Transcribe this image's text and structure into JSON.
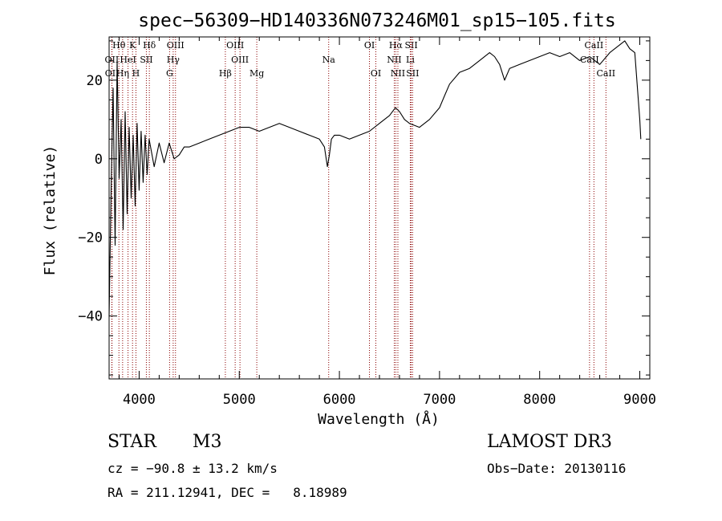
{
  "chart_data": {
    "type": "line",
    "title": "spec−56309−HD140336N073246M01_sp15−105.fits",
    "xlabel": "Wavelength (Å)",
    "ylabel": "Flux (relative)",
    "xlim": [
      3700,
      9100
    ],
    "ylim": [
      -56,
      31
    ],
    "xticks": [
      4000,
      5000,
      6000,
      7000,
      8000,
      9000
    ],
    "xtick_labels": [
      "4000",
      "5000",
      "6000",
      "7000",
      "8000",
      "9000"
    ],
    "yticks": [
      -40,
      -20,
      0,
      20
    ],
    "ytick_labels": [
      "−40",
      "−20",
      "0",
      "20"
    ],
    "grid": false,
    "series": [
      {
        "name": "spectrum",
        "color": "#000000",
        "x": [
          3700,
          3720,
          3740,
          3760,
          3780,
          3800,
          3820,
          3840,
          3860,
          3880,
          3900,
          3920,
          3940,
          3960,
          3980,
          4000,
          4020,
          4040,
          4060,
          4080,
          4100,
          4150,
          4200,
          4250,
          4300,
          4350,
          4400,
          4450,
          4500,
          4600,
          4700,
          4800,
          4900,
          5000,
          5100,
          5200,
          5300,
          5400,
          5500,
          5600,
          5700,
          5800,
          5850,
          5880,
          5900,
          5920,
          5950,
          6000,
          6100,
          6200,
          6300,
          6400,
          6500,
          6560,
          6600,
          6650,
          6700,
          6800,
          6900,
          7000,
          7050,
          7100,
          7200,
          7300,
          7400,
          7500,
          7550,
          7600,
          7650,
          7700,
          7800,
          7900,
          8000,
          8100,
          8200,
          8300,
          8400,
          8500,
          8600,
          8700,
          8800,
          8850,
          8900,
          8950,
          9000,
          9010
        ],
        "y": [
          -40,
          -8,
          18,
          -22,
          25,
          -5,
          10,
          -18,
          12,
          -14,
          8,
          -10,
          6,
          -12,
          9,
          -8,
          7,
          -6,
          6,
          -4,
          5,
          -2,
          4,
          -1,
          4,
          0,
          1,
          3,
          3,
          4,
          5,
          6,
          7,
          8,
          8,
          7,
          8,
          9,
          8,
          7,
          6,
          5,
          3,
          -2,
          1,
          5,
          6,
          6,
          5,
          6,
          7,
          9,
          11,
          13,
          12,
          10,
          9,
          8,
          10,
          13,
          16,
          19,
          22,
          23,
          25,
          27,
          26,
          24,
          20,
          23,
          24,
          25,
          26,
          27,
          26,
          27,
          25,
          26,
          24,
          27,
          29,
          30,
          28,
          27,
          10,
          5
        ]
      }
    ],
    "lines": [
      {
        "name": "Hθ",
        "x": 3798,
        "row": 0
      },
      {
        "name": "K",
        "x": 3934,
        "row": 0
      },
      {
        "name": "Hδ",
        "x": 4102,
        "row": 0
      },
      {
        "name": "OIII",
        "x": 4363,
        "row": 0
      },
      {
        "name": "OIII",
        "x": 4959,
        "row": 0
      },
      {
        "name": "OI",
        "x": 6300,
        "row": 0
      },
      {
        "name": "Hα",
        "x": 6563,
        "row": 0
      },
      {
        "name": "SII",
        "x": 6717,
        "row": 0
      },
      {
        "name": "CaII",
        "x": 8542,
        "row": 0
      },
      {
        "name": "OII",
        "x": 3727,
        "row": 1
      },
      {
        "name": "HeI",
        "x": 3889,
        "row": 1
      },
      {
        "name": "SII",
        "x": 4072,
        "row": 1
      },
      {
        "name": "Hγ",
        "x": 4340,
        "row": 1
      },
      {
        "name": "OIII",
        "x": 5007,
        "row": 1
      },
      {
        "name": "Na",
        "x": 5893,
        "row": 1
      },
      {
        "name": "NII",
        "x": 6548,
        "row": 1
      },
      {
        "name": "Li",
        "x": 6708,
        "row": 1
      },
      {
        "name": "CaII",
        "x": 8498,
        "row": 1
      },
      {
        "name": "OII",
        "x": 3729,
        "row": 2
      },
      {
        "name": "Hη",
        "x": 3835,
        "row": 2
      },
      {
        "name": "H",
        "x": 3968,
        "row": 2
      },
      {
        "name": "G",
        "x": 4304,
        "row": 2
      },
      {
        "name": "Hβ",
        "x": 4861,
        "row": 2
      },
      {
        "name": "Mg",
        "x": 5175,
        "row": 2
      },
      {
        "name": "OI",
        "x": 6364,
        "row": 2
      },
      {
        "name": "NII",
        "x": 6584,
        "row": 2
      },
      {
        "name": "SII",
        "x": 6731,
        "row": 2
      },
      {
        "name": "CaII",
        "x": 8662,
        "row": 2
      }
    ],
    "line_color": "#8b0000"
  },
  "info": {
    "object_class": "STAR",
    "subclass": "M3",
    "survey": "LAMOST DR3",
    "cz": "cz = −90.8 ± 13.2 km/s",
    "obs_date": "Obs−Date: 20130116",
    "coords": "RA = 211.12941, DEC =   8.18989"
  }
}
